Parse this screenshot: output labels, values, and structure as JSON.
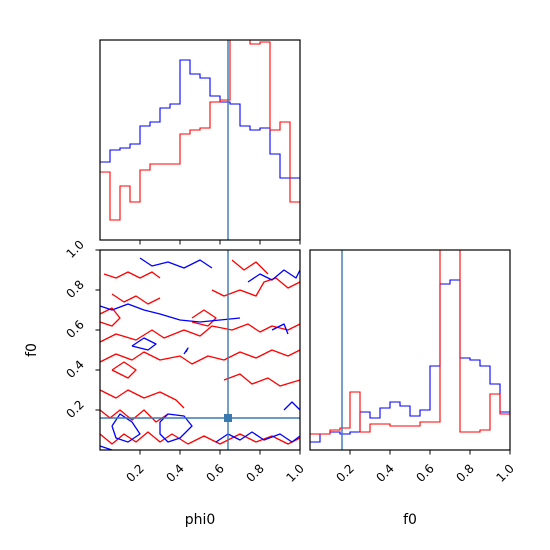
{
  "chart_data": [
    {
      "panel": "phi0-marginal",
      "type": "step",
      "xlim": [
        0,
        1
      ],
      "truth_x": 0.64,
      "y_ticks_shown": false,
      "x_tick_labels_shown": false,
      "bin_edges": [
        0,
        0.05,
        0.1,
        0.15,
        0.2,
        0.25,
        0.3,
        0.35,
        0.4,
        0.45,
        0.5,
        0.55,
        0.6,
        0.65,
        0.7,
        0.75,
        0.8,
        0.85,
        0.9,
        0.95,
        1.0
      ],
      "series": [
        {
          "color": "#0000ff",
          "counts": [
            39,
            45,
            46,
            48,
            57,
            59,
            66,
            68,
            90,
            83,
            81,
            72,
            69,
            68,
            57,
            55,
            56,
            43,
            31,
            31
          ]
        },
        {
          "color": "#ff0000",
          "counts": [
            34,
            10,
            27,
            19,
            35,
            38,
            38,
            38,
            53,
            55,
            56,
            69,
            70,
            100,
            100,
            98,
            99,
            55,
            59,
            19
          ]
        }
      ]
    },
    {
      "panel": "phi0-f0-contours",
      "type": "contour",
      "xlabel": "phi0",
      "ylabel": "f0",
      "xlim": [
        0,
        1
      ],
      "ylim": [
        0,
        1
      ],
      "x_ticks": [
        "0.2",
        "0.4",
        "0.6",
        "0.8",
        "1.0"
      ],
      "y_ticks": [
        "0.2",
        "0.4",
        "0.6",
        "0.8",
        "1.0"
      ],
      "truth_point": [
        0.64,
        0.16
      ],
      "series": [
        {
          "color": "#ff0000",
          "paths": [
            [
              [
                0.02,
                0.88
              ],
              [
                0.08,
                0.86
              ],
              [
                0.14,
                0.89
              ],
              [
                0.2,
                0.86
              ],
              [
                0.26,
                0.89
              ],
              [
                0.3,
                0.86
              ]
            ],
            [
              [
                0.06,
                0.78
              ],
              [
                0.12,
                0.74
              ],
              [
                0.18,
                0.77
              ],
              [
                0.24,
                0.73
              ],
              [
                0.3,
                0.76
              ]
            ],
            [
              [
                0.0,
                0.68
              ],
              [
                0.06,
                0.71
              ],
              [
                0.1,
                0.66
              ],
              [
                0.06,
                0.62
              ],
              [
                0.0,
                0.64
              ]
            ],
            [
              [
                0.0,
                0.54
              ],
              [
                0.08,
                0.58
              ],
              [
                0.18,
                0.55
              ],
              [
                0.26,
                0.6
              ],
              [
                0.32,
                0.56
              ],
              [
                0.42,
                0.6
              ],
              [
                0.5,
                0.57
              ],
              [
                0.56,
                0.62
              ],
              [
                0.66,
                0.6
              ],
              [
                0.74,
                0.63
              ],
              [
                0.8,
                0.59
              ],
              [
                0.86,
                0.62
              ],
              [
                0.94,
                0.6
              ],
              [
                1.0,
                0.63
              ]
            ],
            [
              [
                0.0,
                0.44
              ],
              [
                0.08,
                0.48
              ],
              [
                0.16,
                0.45
              ],
              [
                0.22,
                0.49
              ],
              [
                0.3,
                0.45
              ],
              [
                0.4,
                0.47
              ],
              [
                0.46,
                0.43
              ],
              [
                0.54,
                0.47
              ],
              [
                0.62,
                0.45
              ],
              [
                0.7,
                0.49
              ],
              [
                0.78,
                0.46
              ],
              [
                0.86,
                0.5
              ],
              [
                0.94,
                0.47
              ],
              [
                1.0,
                0.5
              ]
            ],
            [
              [
                0.0,
                0.3
              ],
              [
                0.08,
                0.26
              ],
              [
                0.14,
                0.3
              ],
              [
                0.22,
                0.26
              ],
              [
                0.3,
                0.29
              ],
              [
                0.38,
                0.25
              ],
              [
                0.42,
                0.21
              ]
            ],
            [
              [
                0.0,
                0.2
              ],
              [
                0.05,
                0.16
              ],
              [
                0.1,
                0.2
              ],
              [
                0.16,
                0.15
              ],
              [
                0.22,
                0.2
              ],
              [
                0.28,
                0.14
              ],
              [
                0.34,
                0.18
              ]
            ],
            [
              [
                0.0,
                0.08
              ],
              [
                0.06,
                0.03
              ],
              [
                0.12,
                0.08
              ],
              [
                0.18,
                0.04
              ],
              [
                0.24,
                0.09
              ],
              [
                0.3,
                0.04
              ],
              [
                0.36,
                0.08
              ],
              [
                0.44,
                0.03
              ],
              [
                0.52,
                0.07
              ],
              [
                0.6,
                0.03
              ],
              [
                0.7,
                0.08
              ],
              [
                0.78,
                0.04
              ],
              [
                0.86,
                0.07
              ],
              [
                0.94,
                0.03
              ],
              [
                1.0,
                0.06
              ]
            ],
            [
              [
                0.56,
                0.8
              ],
              [
                0.62,
                0.77
              ],
              [
                0.7,
                0.8
              ],
              [
                0.78,
                0.77
              ],
              [
                0.82,
                0.84
              ],
              [
                0.88,
                0.86
              ],
              [
                0.94,
                0.81
              ],
              [
                1.0,
                0.84
              ]
            ],
            [
              [
                0.66,
                0.95
              ],
              [
                0.72,
                0.9
              ],
              [
                0.78,
                0.94
              ],
              [
                0.84,
                0.88
              ]
            ],
            [
              [
                0.46,
                0.66
              ],
              [
                0.52,
                0.7
              ],
              [
                0.58,
                0.66
              ],
              [
                0.54,
                0.62
              ],
              [
                0.46,
                0.64
              ]
            ],
            [
              [
                0.62,
                0.35
              ],
              [
                0.7,
                0.38
              ],
              [
                0.76,
                0.33
              ],
              [
                0.84,
                0.36
              ],
              [
                0.9,
                0.32
              ],
              [
                1.0,
                0.35
              ]
            ],
            [
              [
                0.06,
                0.4
              ],
              [
                0.14,
                0.36
              ],
              [
                0.18,
                0.4
              ],
              [
                0.12,
                0.44
              ],
              [
                0.06,
                0.4
              ]
            ]
          ]
        },
        {
          "color": "#0000ff",
          "paths": [
            [
              [
                0.2,
                0.96
              ],
              [
                0.26,
                0.92
              ],
              [
                0.34,
                0.94
              ],
              [
                0.42,
                0.91
              ],
              [
                0.5,
                0.95
              ],
              [
                0.56,
                0.91
              ]
            ],
            [
              [
                0.0,
                0.72
              ],
              [
                0.06,
                0.7
              ],
              [
                0.14,
                0.73
              ],
              [
                0.22,
                0.7
              ],
              [
                0.3,
                0.68
              ],
              [
                0.4,
                0.65
              ],
              [
                0.5,
                0.64
              ],
              [
                0.6,
                0.65
              ],
              [
                0.7,
                0.66
              ]
            ],
            [
              [
                0.16,
                0.52
              ],
              [
                0.22,
                0.56
              ],
              [
                0.28,
                0.53
              ],
              [
                0.24,
                0.5
              ],
              [
                0.16,
                0.52
              ]
            ],
            [
              [
                0.74,
                0.84
              ],
              [
                0.8,
                0.88
              ],
              [
                0.86,
                0.85
              ],
              [
                0.92,
                0.9
              ],
              [
                0.98,
                0.86
              ],
              [
                1.0,
                0.9
              ]
            ],
            [
              [
                0.86,
                0.6
              ],
              [
                0.92,
                0.63
              ],
              [
                0.94,
                0.58
              ]
            ],
            [
              [
                0.42,
                0.48
              ],
              [
                0.44,
                0.51
              ],
              [
                0.43,
                0.49
              ]
            ],
            [
              [
                0.06,
                0.12
              ],
              [
                0.1,
                0.18
              ],
              [
                0.16,
                0.14
              ],
              [
                0.2,
                0.08
              ],
              [
                0.14,
                0.04
              ],
              [
                0.08,
                0.06
              ],
              [
                0.06,
                0.12
              ]
            ],
            [
              [
                0.3,
                0.14
              ],
              [
                0.34,
                0.18
              ],
              [
                0.42,
                0.17
              ],
              [
                0.46,
                0.12
              ],
              [
                0.4,
                0.06
              ],
              [
                0.34,
                0.04
              ],
              [
                0.3,
                0.08
              ],
              [
                0.3,
                0.14
              ]
            ],
            [
              [
                0.0,
                0.02
              ],
              [
                0.06,
                0.0
              ]
            ],
            [
              [
                0.58,
                0.04
              ],
              [
                0.64,
                0.08
              ],
              [
                0.7,
                0.05
              ],
              [
                0.76,
                0.09
              ],
              [
                0.82,
                0.05
              ],
              [
                0.9,
                0.08
              ],
              [
                0.96,
                0.04
              ],
              [
                1.0,
                0.07
              ]
            ],
            [
              [
                0.92,
                0.2
              ],
              [
                0.96,
                0.24
              ],
              [
                1.0,
                0.2
              ]
            ]
          ]
        }
      ]
    },
    {
      "panel": "f0-marginal",
      "type": "step",
      "xlabel": "f0",
      "xlim": [
        0,
        1
      ],
      "truth_x": 0.16,
      "y_ticks_shown": false,
      "x_ticks": [
        "0.2",
        "0.4",
        "0.6",
        "0.8",
        "1.0"
      ],
      "bin_edges": [
        0,
        0.05,
        0.1,
        0.15,
        0.2,
        0.25,
        0.3,
        0.35,
        0.4,
        0.45,
        0.5,
        0.55,
        0.6,
        0.65,
        0.7,
        0.75,
        0.8,
        0.85,
        0.9,
        0.95,
        1.0
      ],
      "series": [
        {
          "color": "#0000ff",
          "counts": [
            4,
            8,
            9,
            8,
            9,
            19,
            16,
            21,
            24,
            22,
            17,
            20,
            42,
            83,
            85,
            46,
            45,
            42,
            33,
            19
          ]
        },
        {
          "color": "#ff0000",
          "counts": [
            8,
            8,
            10,
            11,
            29,
            9,
            13,
            13,
            12,
            12,
            12,
            14,
            14,
            100,
            100,
            9,
            9,
            10,
            28,
            18
          ]
        }
      ]
    }
  ]
}
